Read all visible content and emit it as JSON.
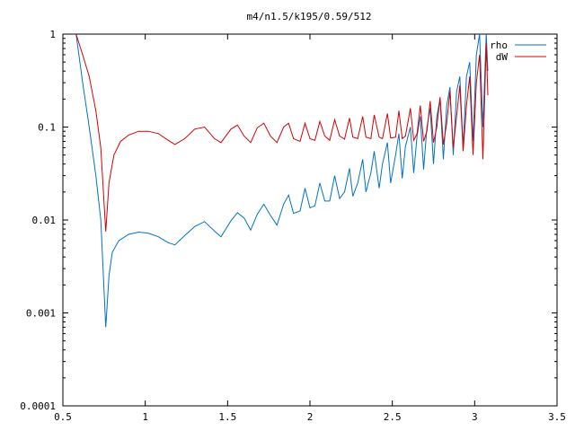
{
  "chart_data": {
    "type": "line",
    "title": "m4/n1.5/k195/0.59/512",
    "xlabel": "",
    "ylabel": "",
    "xlim": [
      0.5,
      3.5
    ],
    "ylim": [
      0.0001,
      1
    ],
    "yscale": "log",
    "grid": false,
    "legend_position": "top-right",
    "x_ticks": [
      0.5,
      1,
      1.5,
      2,
      2.5,
      3,
      3.5
    ],
    "x_tick_labels": [
      "0.5",
      "1",
      "1.5",
      "2",
      "2.5",
      "3",
      "3.5"
    ],
    "y_ticks": [
      0.0001,
      0.001,
      0.01,
      0.1,
      1
    ],
    "y_tick_labels": [
      "0.0001",
      "0.001",
      "0.01",
      "0.1",
      "1"
    ],
    "series": [
      {
        "name": "rho",
        "color": "#0072c6",
        "x": [
          0.58,
          0.62,
          0.66,
          0.7,
          0.73,
          0.76,
          0.78,
          0.8,
          0.84,
          0.9,
          0.96,
          1.02,
          1.08,
          1.14,
          1.18,
          1.24,
          1.3,
          1.36,
          1.42,
          1.46,
          1.52,
          1.56,
          1.6,
          1.64,
          1.68,
          1.72,
          1.76,
          1.8,
          1.84,
          1.87,
          1.9,
          1.94,
          1.97,
          2.0,
          2.03,
          2.06,
          2.09,
          2.12,
          2.15,
          2.18,
          2.21,
          2.24,
          2.26,
          2.29,
          2.32,
          2.34,
          2.37,
          2.39,
          2.42,
          2.44,
          2.47,
          2.49,
          2.52,
          2.54,
          2.56,
          2.58,
          2.61,
          2.63,
          2.65,
          2.67,
          2.69,
          2.71,
          2.73,
          2.75,
          2.77,
          2.79,
          2.81,
          2.83,
          2.85,
          2.87,
          2.89,
          2.91,
          2.93,
          2.95,
          2.97,
          2.99,
          3.01,
          3.03,
          3.05,
          3.07,
          3.08
        ],
        "y": [
          1,
          0.3,
          0.1,
          0.03,
          0.01,
          0.0007,
          0.0025,
          0.0045,
          0.006,
          0.007,
          0.0074,
          0.0072,
          0.0066,
          0.0057,
          0.0054,
          0.0068,
          0.0085,
          0.0096,
          0.0076,
          0.0066,
          0.0098,
          0.012,
          0.0105,
          0.0078,
          0.0115,
          0.0148,
          0.0112,
          0.0088,
          0.0148,
          0.0185,
          0.0118,
          0.0125,
          0.022,
          0.0135,
          0.0142,
          0.025,
          0.016,
          0.016,
          0.03,
          0.017,
          0.02,
          0.036,
          0.018,
          0.025,
          0.045,
          0.02,
          0.032,
          0.055,
          0.022,
          0.04,
          0.068,
          0.025,
          0.05,
          0.085,
          0.028,
          0.062,
          0.1,
          0.032,
          0.08,
          0.13,
          0.035,
          0.1,
          0.16,
          0.04,
          0.13,
          0.2,
          0.045,
          0.17,
          0.27,
          0.05,
          0.24,
          0.35,
          0.06,
          0.35,
          0.5,
          0.07,
          0.6,
          1,
          0.1,
          1,
          0.4
        ]
      },
      {
        "name": "dW",
        "color": "#d40000",
        "x": [
          0.58,
          0.62,
          0.66,
          0.7,
          0.73,
          0.76,
          0.78,
          0.81,
          0.85,
          0.9,
          0.96,
          1.02,
          1.08,
          1.14,
          1.18,
          1.24,
          1.3,
          1.36,
          1.42,
          1.46,
          1.52,
          1.56,
          1.6,
          1.64,
          1.68,
          1.72,
          1.76,
          1.8,
          1.84,
          1.87,
          1.9,
          1.94,
          1.97,
          2.0,
          2.03,
          2.06,
          2.09,
          2.12,
          2.15,
          2.18,
          2.21,
          2.24,
          2.26,
          2.29,
          2.32,
          2.34,
          2.37,
          2.39,
          2.42,
          2.44,
          2.47,
          2.49,
          2.52,
          2.54,
          2.56,
          2.58,
          2.61,
          2.63,
          2.65,
          2.67,
          2.69,
          2.71,
          2.73,
          2.75,
          2.77,
          2.79,
          2.81,
          2.83,
          2.85,
          2.87,
          2.89,
          2.91,
          2.93,
          2.95,
          2.97,
          2.99,
          3.01,
          3.03,
          3.05,
          3.07,
          3.08
        ],
        "y": [
          1,
          0.6,
          0.35,
          0.15,
          0.06,
          0.0075,
          0.025,
          0.05,
          0.07,
          0.082,
          0.09,
          0.09,
          0.085,
          0.072,
          0.065,
          0.075,
          0.095,
          0.1,
          0.075,
          0.068,
          0.095,
          0.105,
          0.08,
          0.068,
          0.098,
          0.11,
          0.08,
          0.068,
          0.1,
          0.11,
          0.075,
          0.07,
          0.11,
          0.075,
          0.072,
          0.115,
          0.08,
          0.072,
          0.12,
          0.08,
          0.074,
          0.125,
          0.078,
          0.075,
          0.13,
          0.078,
          0.075,
          0.135,
          0.078,
          0.075,
          0.14,
          0.076,
          0.078,
          0.15,
          0.075,
          0.08,
          0.16,
          0.072,
          0.085,
          0.17,
          0.07,
          0.09,
          0.19,
          0.068,
          0.1,
          0.21,
          0.065,
          0.11,
          0.24,
          0.06,
          0.13,
          0.28,
          0.055,
          0.17,
          0.35,
          0.05,
          0.3,
          0.6,
          0.045,
          0.8,
          0.22
        ]
      }
    ]
  }
}
